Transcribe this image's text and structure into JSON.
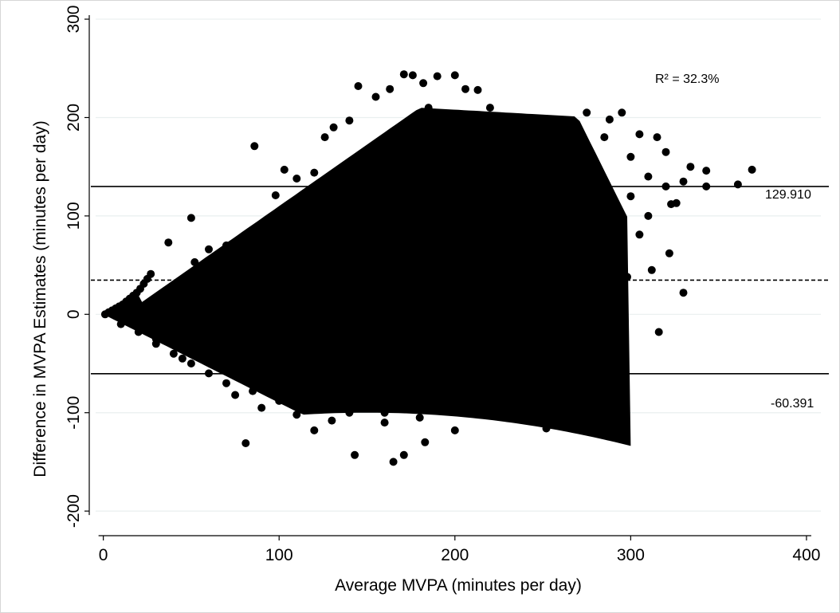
{
  "chart_data": {
    "type": "scatter",
    "xlabel": "Average MVPA (minutes per day)",
    "ylabel": "Difference in MVPA Estimates (minutes per day)",
    "x_ticks": [
      0,
      100,
      200,
      300,
      400
    ],
    "y_ticks": [
      -200,
      -100,
      0,
      100,
      200,
      300
    ],
    "x_tick_labels": [
      "0",
      "100",
      "200",
      "300",
      "400"
    ],
    "y_tick_labels": [
      "-200",
      "-100",
      "0",
      "100",
      "200",
      "300"
    ],
    "xlim": [
      -8,
      410
    ],
    "ylim": [
      -225,
      313
    ],
    "grid": "horizontal",
    "mean_difference": 34.76,
    "upper_limit": 129.91,
    "lower_limit": -60.391,
    "upper_limit_label": "129.910",
    "lower_limit_label": "-60.391",
    "r2_label": "R² = 32.3%",
    "series": [
      {
        "points": [
          [
            1,
            0
          ],
          [
            3,
            2
          ],
          [
            5,
            4
          ],
          [
            7,
            6
          ],
          [
            9,
            8
          ],
          [
            11,
            10
          ],
          [
            13,
            13
          ],
          [
            15,
            16
          ],
          [
            17,
            19
          ],
          [
            19,
            22
          ],
          [
            21,
            26
          ],
          [
            23,
            31
          ],
          [
            25,
            36
          ],
          [
            27,
            41
          ],
          [
            10,
            -10
          ],
          [
            20,
            -18
          ],
          [
            30,
            -30
          ],
          [
            40,
            -40
          ],
          [
            50,
            -50
          ],
          [
            60,
            -60
          ],
          [
            70,
            -70
          ],
          [
            85,
            -78
          ],
          [
            100,
            -88
          ],
          [
            120,
            -95
          ],
          [
            140,
            -100
          ],
          [
            160,
            -100
          ],
          [
            35,
            20
          ],
          [
            52,
            53
          ],
          [
            60,
            66
          ],
          [
            70,
            70
          ],
          [
            80,
            70
          ],
          [
            90,
            92
          ],
          [
            98,
            121
          ],
          [
            103,
            147
          ],
          [
            110,
            138
          ],
          [
            120,
            144
          ],
          [
            126,
            180
          ],
          [
            131,
            190
          ],
          [
            140,
            197
          ],
          [
            145,
            232
          ],
          [
            155,
            221
          ],
          [
            163,
            229
          ],
          [
            171,
            244
          ],
          [
            176,
            243
          ],
          [
            182,
            235
          ],
          [
            190,
            242
          ],
          [
            200,
            243
          ],
          [
            206,
            229
          ],
          [
            213,
            228
          ],
          [
            220,
            210
          ],
          [
            232,
            200
          ],
          [
            248,
            196
          ],
          [
            260,
            195
          ],
          [
            275,
            205
          ],
          [
            288,
            198
          ],
          [
            295,
            205
          ],
          [
            305,
            183
          ],
          [
            315,
            180
          ],
          [
            320,
            165
          ],
          [
            334,
            150
          ],
          [
            343,
            146
          ],
          [
            369,
            147
          ],
          [
            361,
            132
          ],
          [
            343,
            130
          ],
          [
            323,
            112
          ],
          [
            305,
            81
          ],
          [
            288,
            50
          ],
          [
            298,
            38
          ],
          [
            322,
            62
          ],
          [
            330,
            22
          ],
          [
            316,
            -18
          ],
          [
            287,
            -33
          ],
          [
            274,
            -78
          ],
          [
            252,
            -116
          ],
          [
            236,
            -98
          ],
          [
            217,
            -99
          ],
          [
            200,
            -118
          ],
          [
            183,
            -130
          ],
          [
            171,
            -143
          ],
          [
            165,
            -150
          ],
          [
            143,
            -143
          ],
          [
            120,
            -118
          ],
          [
            81,
            -131
          ],
          [
            50,
            98
          ],
          [
            37,
            73
          ],
          [
            86,
            171
          ],
          [
            265,
            125
          ],
          [
            280,
            150
          ],
          [
            245,
            165
          ],
          [
            230,
            150
          ],
          [
            250,
            140
          ],
          [
            300,
            120
          ],
          [
            310,
            100
          ],
          [
            295,
            80
          ],
          [
            280,
            90
          ],
          [
            260,
            60
          ],
          [
            270,
            30
          ],
          [
            265,
            -10
          ],
          [
            255,
            -40
          ],
          [
            240,
            -60
          ],
          [
            225,
            -80
          ],
          [
            210,
            -90
          ],
          [
            195,
            -95
          ],
          [
            180,
            -105
          ],
          [
            160,
            -110
          ],
          [
            130,
            -108
          ],
          [
            110,
            -102
          ],
          [
            90,
            -95
          ],
          [
            75,
            -82
          ],
          [
            45,
            -45
          ],
          [
            30,
            -25
          ],
          [
            20,
            -12
          ],
          [
            100,
            20
          ],
          [
            150,
            50
          ],
          [
            180,
            120
          ],
          [
            200,
            150
          ],
          [
            150,
            0
          ],
          [
            120,
            -40
          ],
          [
            200,
            50
          ],
          [
            220,
            100
          ],
          [
            170,
            180
          ],
          [
            140,
            150
          ],
          [
            110,
            100
          ],
          [
            90,
            60
          ],
          [
            60,
            30
          ],
          [
            240,
            20
          ],
          [
            185,
            210
          ],
          [
            210,
            190
          ],
          [
            160,
            70
          ],
          [
            130,
            60
          ],
          [
            80,
            0
          ],
          [
            100,
            -50
          ],
          [
            140,
            -70
          ],
          [
            190,
            -30
          ],
          [
            230,
            -20
          ],
          [
            250,
            100
          ],
          [
            270,
            170
          ],
          [
            285,
            180
          ],
          [
            300,
            160
          ],
          [
            310,
            140
          ],
          [
            320,
            130
          ],
          [
            330,
            135
          ],
          [
            326,
            113
          ],
          [
            312,
            45
          ],
          [
            292,
            10
          ],
          [
            278,
            -2
          ]
        ]
      }
    ]
  }
}
